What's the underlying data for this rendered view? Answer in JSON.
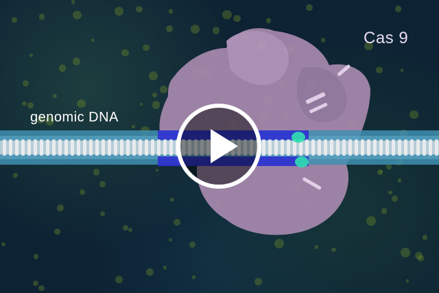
{
  "video": {
    "label_dna": "genomic DNA",
    "label_protein": "Cas 9",
    "play_icon": "play-icon"
  },
  "colors": {
    "protein": "#a88aaf",
    "dna_outer": "#3f8fb0",
    "dna_guide": "#3030d0",
    "highlight": "#30e0b0"
  }
}
